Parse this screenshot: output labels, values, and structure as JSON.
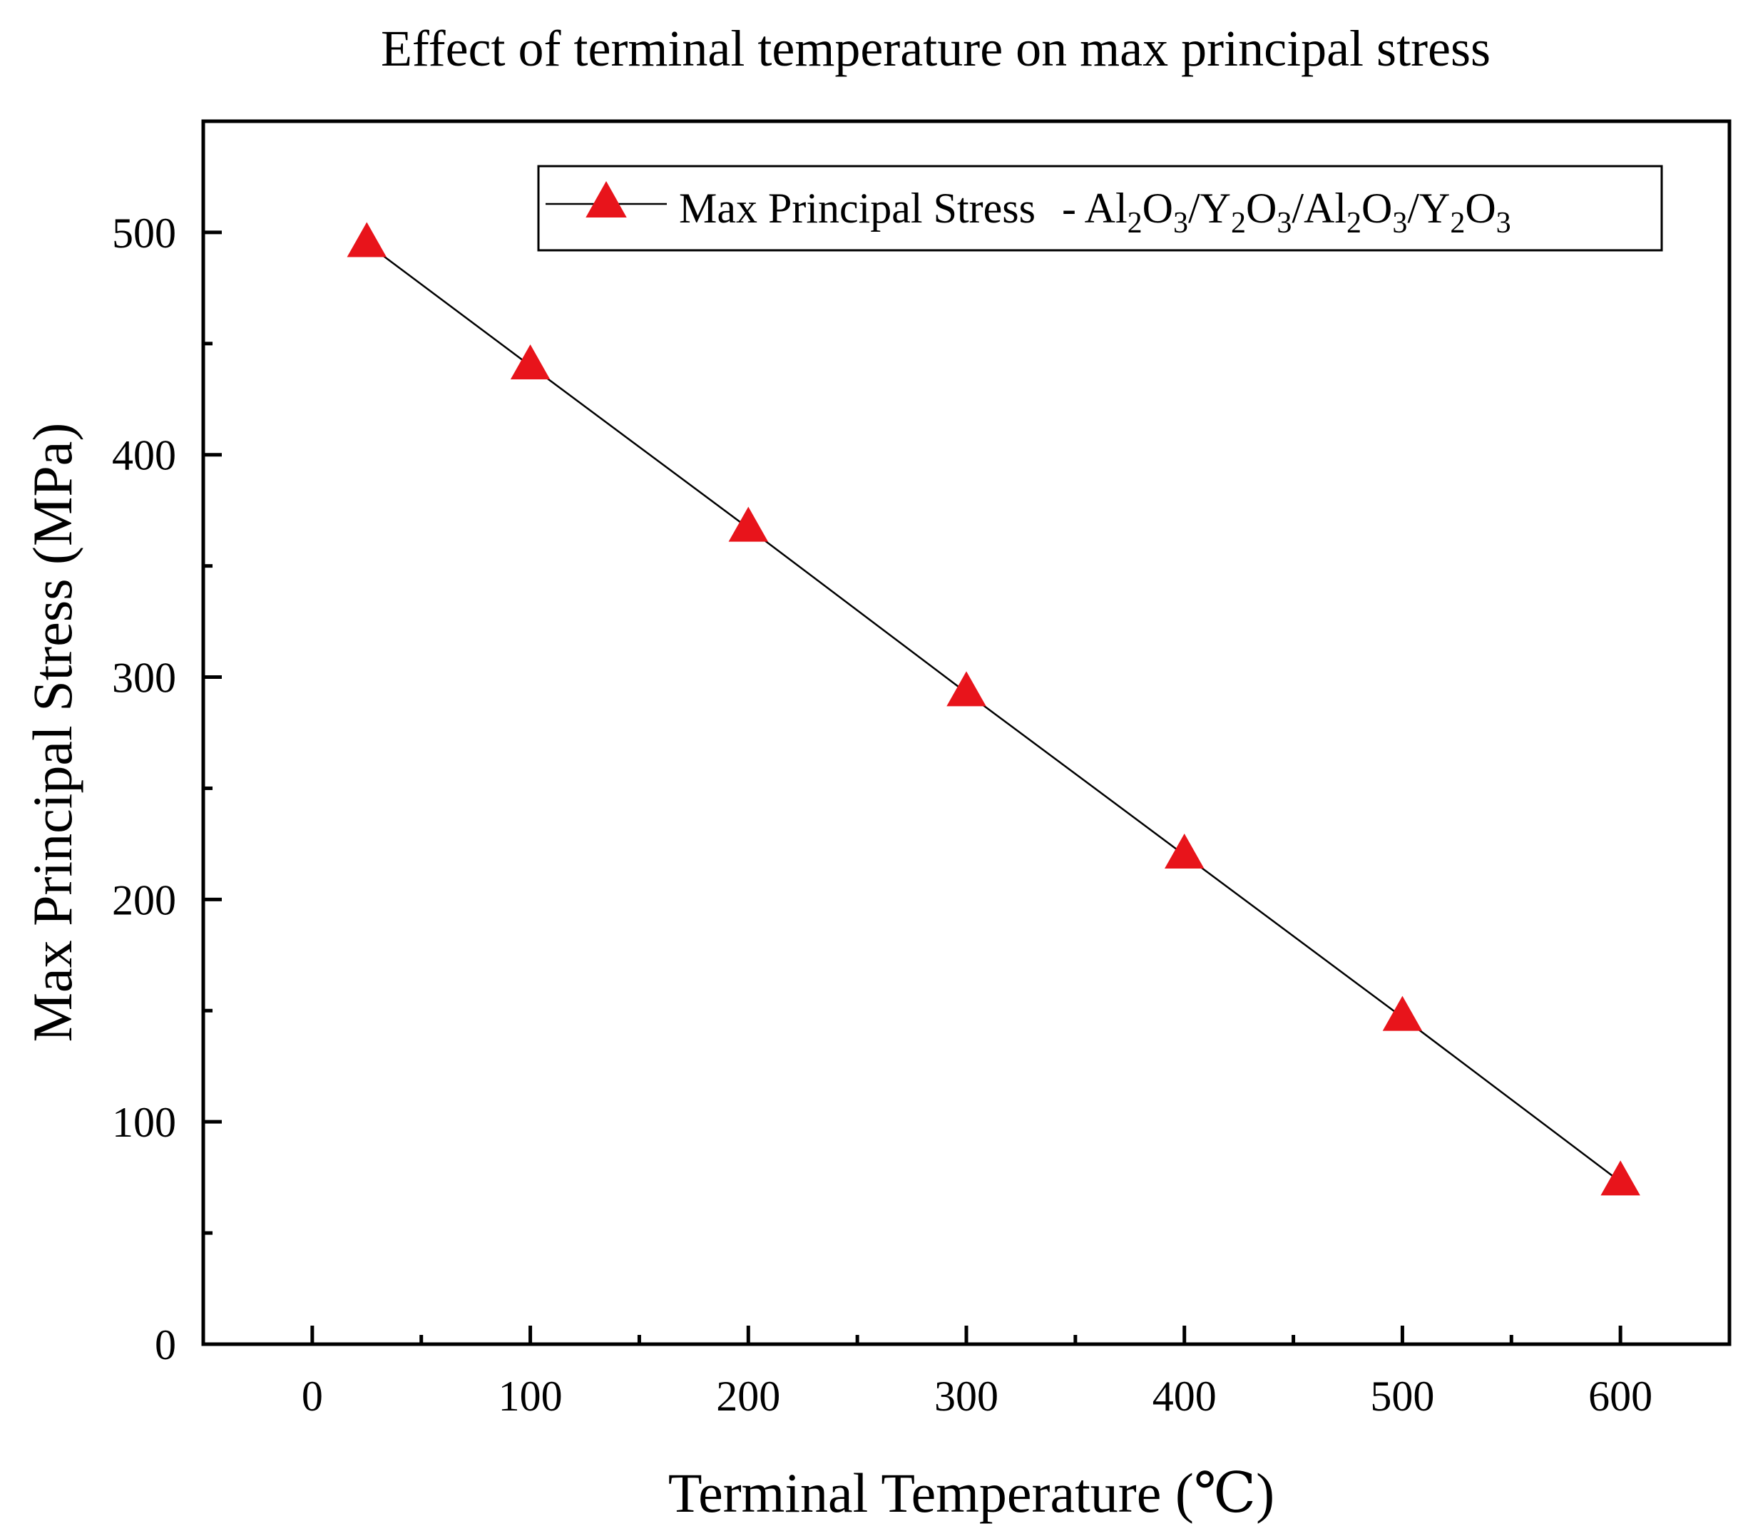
{
  "chart_data": {
    "type": "line",
    "title": "Effect of terminal temperature on max principal stress",
    "xlabel": "Terminal Temperature (℃)",
    "ylabel": "Max Principal Stress (MPa)",
    "xlim": [
      -50,
      650
    ],
    "ylim": [
      0,
      550
    ],
    "x_ticks": [
      0,
      100,
      200,
      300,
      400,
      500,
      600
    ],
    "y_ticks": [
      0,
      100,
      200,
      300,
      400,
      500
    ],
    "grid": false,
    "legend_position": "top-right",
    "series": [
      {
        "name_main": "Max Principal Stress",
        "name_formula": [
          {
            "t": " - Al",
            "sub": false
          },
          {
            "t": "2",
            "sub": true
          },
          {
            "t": "O",
            "sub": false
          },
          {
            "t": "3",
            "sub": true
          },
          {
            "t": "/Y",
            "sub": false
          },
          {
            "t": "2",
            "sub": true
          },
          {
            "t": "O",
            "sub": false
          },
          {
            "t": "3",
            "sub": true
          },
          {
            "t": "/Al",
            "sub": false
          },
          {
            "t": "2",
            "sub": true
          },
          {
            "t": "O",
            "sub": false
          },
          {
            "t": "3",
            "sub": true
          },
          {
            "t": "/Y",
            "sub": false
          },
          {
            "t": "2",
            "sub": true
          },
          {
            "t": "O",
            "sub": false
          },
          {
            "t": "3",
            "sub": true
          }
        ],
        "marker": "triangle",
        "marker_color": "#e8141b",
        "line_color": "#000000",
        "x": [
          25,
          100,
          200,
          300,
          400,
          500,
          600
        ],
        "y": [
          495,
          440,
          367,
          293,
          220,
          147,
          73
        ]
      }
    ]
  }
}
